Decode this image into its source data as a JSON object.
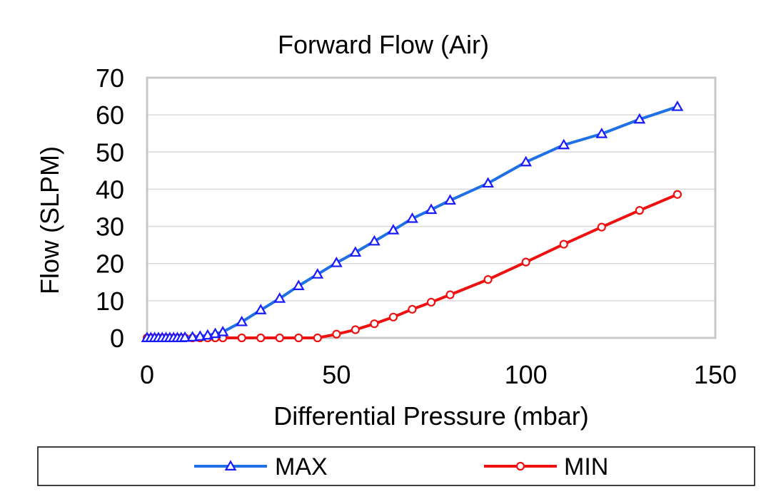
{
  "chart_data": {
    "type": "line",
    "title": "Forward Flow (Air)",
    "xlabel": "Differential Pressure (mbar)",
    "ylabel": "Flow (SLPM)",
    "xlim": [
      0,
      150
    ],
    "ylim": [
      0,
      70
    ],
    "xticks": [
      0,
      50,
      100,
      150
    ],
    "yticks": [
      0,
      10,
      20,
      30,
      40,
      50,
      60,
      70
    ],
    "grid": "horizontal",
    "legend_position": "bottom",
    "series": [
      {
        "name": "MAX",
        "color": "#1f6fe5",
        "marker": "triangle",
        "marker_color": "#1a1aff",
        "x": [
          0,
          1,
          2,
          3,
          4,
          5,
          6,
          7,
          8,
          9,
          10,
          12,
          14,
          16,
          18,
          20,
          25,
          30,
          35,
          40,
          45,
          50,
          55,
          60,
          65,
          70,
          75,
          80,
          90,
          100,
          110,
          120,
          130,
          140
        ],
        "y": [
          0,
          0,
          0,
          0,
          0,
          0,
          0,
          0,
          0,
          0,
          0.1,
          0.2,
          0.4,
          0.7,
          1.1,
          1.6,
          4.3,
          7.5,
          10.6,
          14.0,
          17.1,
          20.2,
          23.0,
          26.0,
          29.0,
          32.1,
          34.5,
          37.0,
          41.6,
          47.3,
          51.9,
          54.9,
          58.8,
          62.2
        ]
      },
      {
        "name": "MIN",
        "color": "#ee1111",
        "marker": "circle",
        "marker_color": "#ee1111",
        "x": [
          0,
          1,
          2,
          3,
          4,
          5,
          6,
          7,
          8,
          9,
          10,
          12,
          14,
          16,
          18,
          20,
          25,
          30,
          35,
          40,
          45,
          50,
          55,
          60,
          65,
          70,
          75,
          80,
          90,
          100,
          110,
          120,
          130,
          140
        ],
        "y": [
          0,
          0,
          0,
          0,
          0,
          0,
          0,
          0,
          0,
          0,
          0,
          0,
          0,
          0,
          0,
          0,
          0,
          0,
          0,
          0,
          0,
          1.0,
          2.2,
          3.8,
          5.6,
          7.7,
          9.6,
          11.6,
          15.7,
          20.4,
          25.2,
          29.8,
          34.3,
          38.6
        ]
      }
    ]
  }
}
